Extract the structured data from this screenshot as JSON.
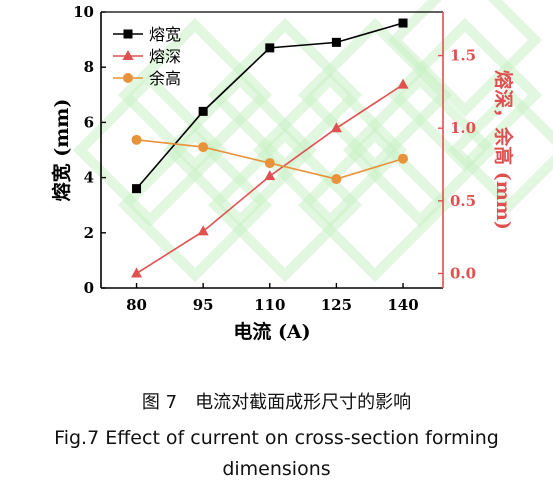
{
  "chart_data": {
    "type": "line",
    "x": [
      80,
      95,
      110,
      125,
      140
    ],
    "xlabel": "电流 (A)",
    "xticks": [
      "80",
      "95",
      "110",
      "125",
      "140"
    ],
    "ylabel_left": "熔宽 (mm)",
    "ylim_left": [
      0,
      10
    ],
    "yticks_left": [
      "0",
      "2",
      "4",
      "6",
      "8",
      "10"
    ],
    "ylabel_right": "熔深，余高 (mm)",
    "ylim_right": [
      -0.1,
      1.8
    ],
    "yticks_right": [
      "0.0",
      "0.5",
      "1.0",
      "1.5"
    ],
    "grid": false,
    "legend_position": "top-left",
    "series": [
      {
        "name": "熔宽",
        "axis": "left",
        "values": [
          3.6,
          6.4,
          8.7,
          8.9,
          9.6
        ],
        "color": "#000000",
        "marker": "square"
      },
      {
        "name": "熔深",
        "axis": "right",
        "values": [
          0.0,
          0.29,
          0.67,
          1.0,
          1.3
        ],
        "color": "#e05050",
        "marker": "triangle"
      },
      {
        "name": "余高",
        "axis": "right",
        "values": [
          0.92,
          0.87,
          0.76,
          0.65,
          0.79
        ],
        "color": "#e8923a",
        "marker": "circle"
      }
    ],
    "colors": {
      "left_axis": "#000000",
      "right_axis": "#e05050",
      "watermark": "#c9f0c4"
    }
  },
  "caption": {
    "cn": "图 7　电流对截面成形尺寸的影响",
    "en_line1": "Fig.7    Effect of current on cross-section forming",
    "en_line2": "dimensions"
  }
}
